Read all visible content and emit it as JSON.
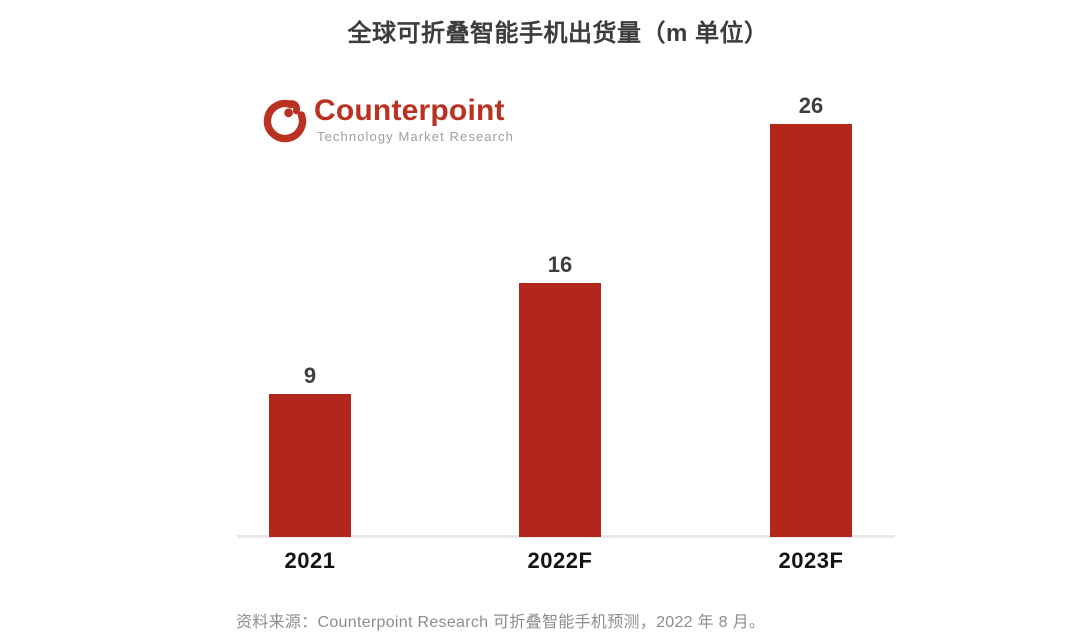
{
  "title": "全球可折叠智能手机出货量（m 单位）",
  "logo": {
    "name": "Counterpoint",
    "tagline": "Technology Market Research",
    "icon": "counterpoint-arc-dot-icon"
  },
  "source_note": "资料来源：Counterpoint Research 可折叠智能手机预测，2022 年 8 月。",
  "colors": {
    "page_bg": "#ffffff",
    "bar": "#b2261b",
    "logo_red": "#b93222",
    "tagline_gray": "#9e9e9e",
    "title_text": "#3c3c3c",
    "value_label": "#3f3f3f",
    "axis_label": "#141414",
    "axis_line": "#e8e8e8",
    "source_text": "#8d8d8d"
  },
  "chart_data": {
    "type": "bar",
    "title": "全球可折叠智能手机出货量（m 单位）",
    "categories": [
      "2021",
      "2022F",
      "2023F"
    ],
    "values": [
      9,
      16,
      26
    ],
    "value_labels": [
      "9",
      "16",
      "26"
    ],
    "xlabel": "",
    "ylabel": "",
    "unit": "m (million units)",
    "ylim": [
      0,
      28
    ],
    "grid": false,
    "legend": null,
    "bar_color": "#b2261b"
  }
}
